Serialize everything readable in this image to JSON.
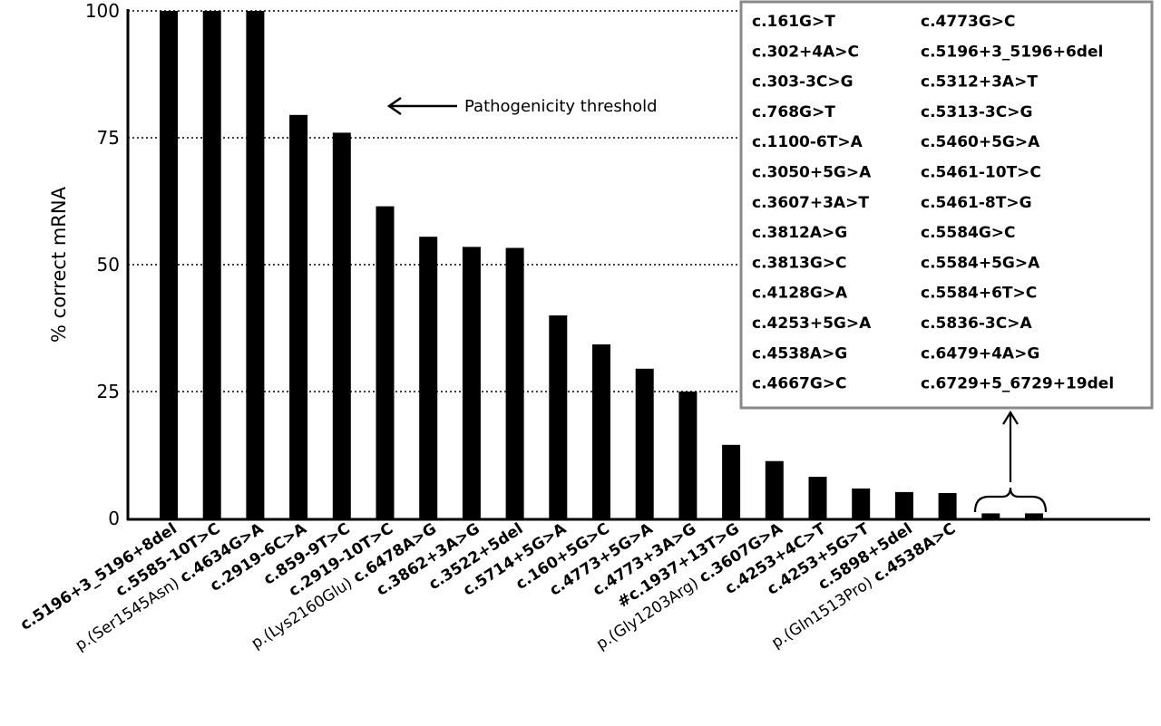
{
  "chart_data": {
    "type": "bar",
    "ylabel": "% correct mRNA",
    "ylim": [
      0,
      100
    ],
    "yticks": [
      "100",
      "75",
      "50",
      "25",
      "0"
    ],
    "ytick_values": [
      100,
      75,
      50,
      25,
      0
    ],
    "grid": "dotted horizontal at 25, 50, 75, 100",
    "bar_color": "#000000",
    "categories": [
      "c.5196+3_5196+8del",
      "c.5585-10T>C",
      "p.(Ser1545Asn) c.4634G>A",
      "c.2919-6C>A",
      "c.859-9T>C",
      "c.2919-10T>C",
      "p.(Lys2160Glu) c.6478A>G",
      "c.3862+3A>G",
      "c.3522+5del",
      "c.5714+5G>A",
      "c.160+5G>C",
      "c.4773+5G>A",
      "c.4773+3A>G",
      "#c.1937+13T>G",
      "p.(Gly1203Arg) c.3607G>A",
      "c.4253+4C>T",
      "c.4253+5G>T",
      "c.5898+5del",
      "p.(Gln1513Pro) c.4538A>C",
      "",
      ""
    ],
    "values": [
      100,
      100,
      100,
      79.5,
      76,
      61.5,
      55.5,
      53.5,
      53.3,
      40,
      34.3,
      29.5,
      25,
      14.5,
      11.3,
      8.2,
      5.9,
      5.2,
      5.0,
      1,
      1
    ],
    "annotation": "Pathogenicity threshold",
    "legend_box": {
      "column1": [
        "c.161G>T",
        "c.302+4A>C",
        "c.303-3C>G",
        "c.768G>T",
        "c.1100-6T>A",
        "c.3050+5G>A",
        "c.3607+3A>T",
        "c.3812A>G",
        "c.3813G>C",
        "c.4128G>A",
        "c.4253+5G>A",
        "c.4538A>G",
        "c.4667G>C"
      ],
      "column2": [
        "c.4773G>C",
        "c.5196+3_5196+6del",
        "c.5312+3A>T",
        "c.5313-3C>G",
        "c.5460+5G>A",
        "c.5461-10T>C",
        "c.5461-8T>G",
        "c.5584G>C",
        "c.5584+5G>A",
        "c.5584+6T>C",
        "c.5836-3C>A",
        "c.6479+4A>G",
        "c.6729+5_6729+19del"
      ],
      "border_color": "#8a8a8a"
    }
  }
}
